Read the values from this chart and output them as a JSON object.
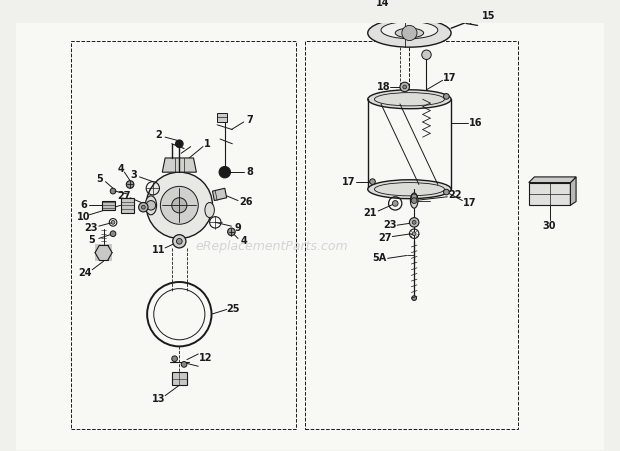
{
  "bg_color": "#f0f0ec",
  "line_color": "#1a1a1a",
  "watermark_text": "eReplacementParts.com",
  "fig_width": 6.2,
  "fig_height": 4.51,
  "dpi": 100
}
